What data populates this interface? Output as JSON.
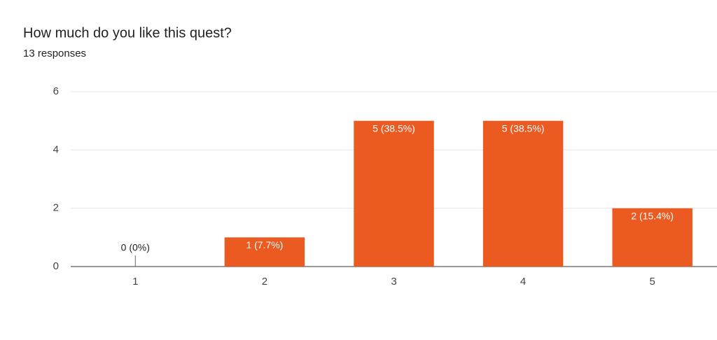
{
  "chart_data": {
    "type": "bar",
    "title": "How much do you like this quest?",
    "subtitle": "13 responses",
    "categories": [
      "1",
      "2",
      "3",
      "4",
      "5"
    ],
    "values": [
      0,
      1,
      5,
      5,
      2
    ],
    "value_labels": [
      "0 (0%)",
      "1 (7.7%)",
      "5 (38.5%)",
      "5 (38.5%)",
      "2 (15.4%)"
    ],
    "color": "#ea5a21",
    "ylim": [
      0,
      6
    ],
    "yticks": [
      0,
      2,
      4,
      6
    ],
    "grid": true
  }
}
